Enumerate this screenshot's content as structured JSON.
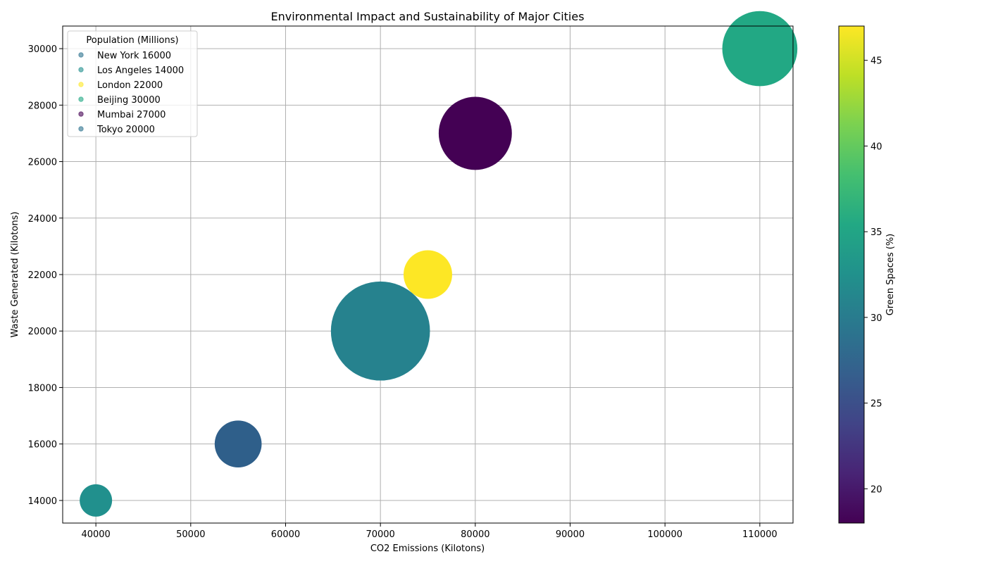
{
  "chart_data": {
    "type": "scatter",
    "title": "Environmental Impact and Sustainability of Major Cities",
    "xlabel": "CO2 Emissions (Kilotons)",
    "ylabel": "Waste Generated (Kilotons)",
    "colorbar_label": "Green Spaces (%)",
    "xlim": [
      36500,
      113500
    ],
    "ylim": [
      13200,
      30800
    ],
    "x_ticks": [
      40000,
      50000,
      60000,
      70000,
      80000,
      90000,
      100000,
      110000
    ],
    "y_ticks": [
      14000,
      16000,
      18000,
      20000,
      22000,
      24000,
      26000,
      28000,
      30000
    ],
    "color_range": [
      18,
      47
    ],
    "colorbar_ticks": [
      20,
      25,
      30,
      35,
      40,
      45
    ],
    "grid": true,
    "legend": {
      "title": "Population (Millions)",
      "placement": "top-left",
      "entries": [
        {
          "label": " New York 16000",
          "color": "#2c728e"
        },
        {
          "label": " Los Angeles 14000",
          "color": "#21908d"
        },
        {
          "label": " London 22000",
          "color": "#fde725"
        },
        {
          "label": " Beijing 30000",
          "color": "#22a884"
        },
        {
          "label": " Mumbai 27000",
          "color": "#440154"
        },
        {
          "label": " Tokyo 20000",
          "color": "#2c728e"
        }
      ]
    },
    "points": [
      {
        "x": 55000,
        "y": 16000,
        "green": 27,
        "population": 8.4,
        "color": "#2f5f8a"
      },
      {
        "x": 40000,
        "y": 14000,
        "green": 33,
        "population": 4.0,
        "color": "#21908d"
      },
      {
        "x": 75000,
        "y": 22000,
        "green": 47,
        "population": 9.0,
        "color": "#fde725"
      },
      {
        "x": 110000,
        "y": 30000,
        "green": 35,
        "population": 21.5,
        "color": "#22a884"
      },
      {
        "x": 80000,
        "y": 27000,
        "green": 18,
        "population": 20.4,
        "color": "#440154"
      },
      {
        "x": 70000,
        "y": 20000,
        "green": 30,
        "population": 37.4,
        "color": "#26828e"
      }
    ]
  }
}
